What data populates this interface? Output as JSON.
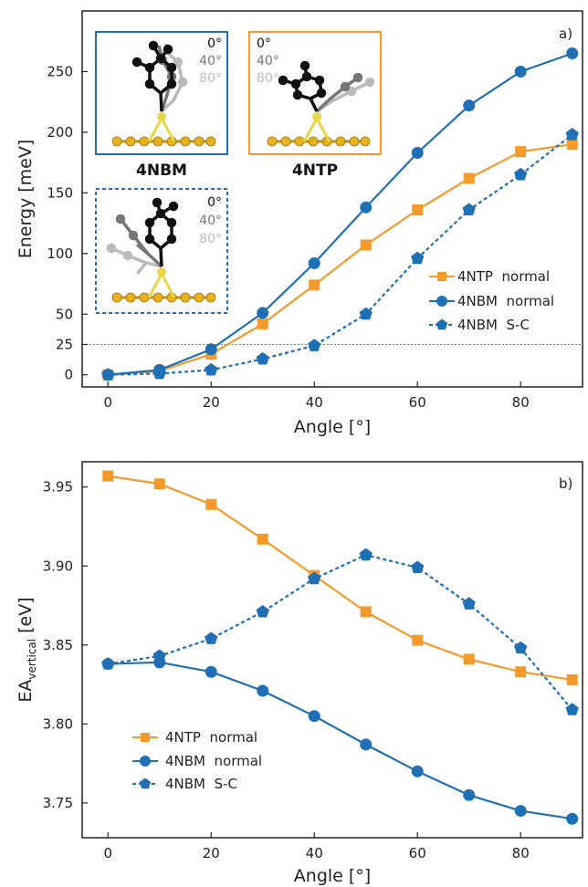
{
  "colors": {
    "ntp": "#f39a2b",
    "nbm": "#1f6fb4",
    "gold": "#e8b21c",
    "sulfur": "#e8d64a",
    "ang0": "#111111",
    "ang40": "#777777",
    "ang80": "#bbbbbb",
    "refline": "#777777"
  },
  "insets": {
    "nbm_title": "4NBM",
    "ntp_title": "4NTP",
    "angles": [
      "0°",
      "40°",
      "80°"
    ]
  },
  "chart_data": [
    {
      "type": "line",
      "panel_label": "a)",
      "xlabel": "Angle [°]",
      "ylabel": "Energy [meV]",
      "xlim": [
        -5,
        92
      ],
      "ylim": [
        -10,
        300
      ],
      "xticks": [
        0,
        20,
        40,
        60,
        80
      ],
      "yticks": [
        0,
        25,
        50,
        100,
        150,
        200,
        250
      ],
      "reference_line_y": 25,
      "legend_position": "center-right",
      "x": [
        0,
        10,
        20,
        30,
        40,
        50,
        60,
        70,
        80,
        90
      ],
      "series": [
        {
          "name": "4NTP  normal",
          "marker": "square",
          "dash": "solid",
          "color": "#f39a2b",
          "values": [
            0,
            3,
            17,
            42,
            74,
            107,
            136,
            162,
            184,
            190
          ]
        },
        {
          "name": "4NBM  normal",
          "marker": "circle",
          "dash": "solid",
          "color": "#1f6fb4",
          "values": [
            0,
            4,
            21,
            51,
            92,
            138,
            183,
            222,
            250,
            265
          ]
        },
        {
          "name": "4NBM  S-C",
          "marker": "pentagon",
          "dash": "dashed",
          "color": "#1f6fb4",
          "values": [
            0,
            1,
            4,
            13,
            24,
            50,
            96,
            136,
            165,
            198
          ]
        }
      ]
    },
    {
      "type": "line",
      "panel_label": "b)",
      "xlabel": "Angle [°]",
      "ylabel_main": "EA",
      "ylabel_sub": "vertical",
      "ylabel_unit": " [eV]",
      "xlim": [
        -5,
        92
      ],
      "ylim": [
        3.728,
        3.966
      ],
      "xticks": [
        0,
        20,
        40,
        60,
        80
      ],
      "yticks": [
        3.75,
        3.8,
        3.85,
        3.9,
        3.95
      ],
      "legend_position": "lower-left",
      "x": [
        0,
        10,
        20,
        30,
        40,
        50,
        60,
        70,
        80,
        90
      ],
      "series": [
        {
          "name": "4NTP  normal",
          "marker": "square",
          "dash": "solid",
          "color": "#f39a2b",
          "values": [
            3.957,
            3.952,
            3.939,
            3.917,
            3.894,
            3.871,
            3.853,
            3.841,
            3.833,
            3.828
          ]
        },
        {
          "name": "4NBM  normal",
          "marker": "circle",
          "dash": "solid",
          "color": "#1f6fb4",
          "values": [
            3.838,
            3.839,
            3.833,
            3.821,
            3.805,
            3.787,
            3.77,
            3.755,
            3.745,
            3.74
          ]
        },
        {
          "name": "4NBM  S-C",
          "marker": "pentagon",
          "dash": "dashed",
          "color": "#1f6fb4",
          "values": [
            3.838,
            3.843,
            3.854,
            3.871,
            3.892,
            3.907,
            3.899,
            3.876,
            3.848,
            3.809
          ]
        }
      ]
    }
  ]
}
